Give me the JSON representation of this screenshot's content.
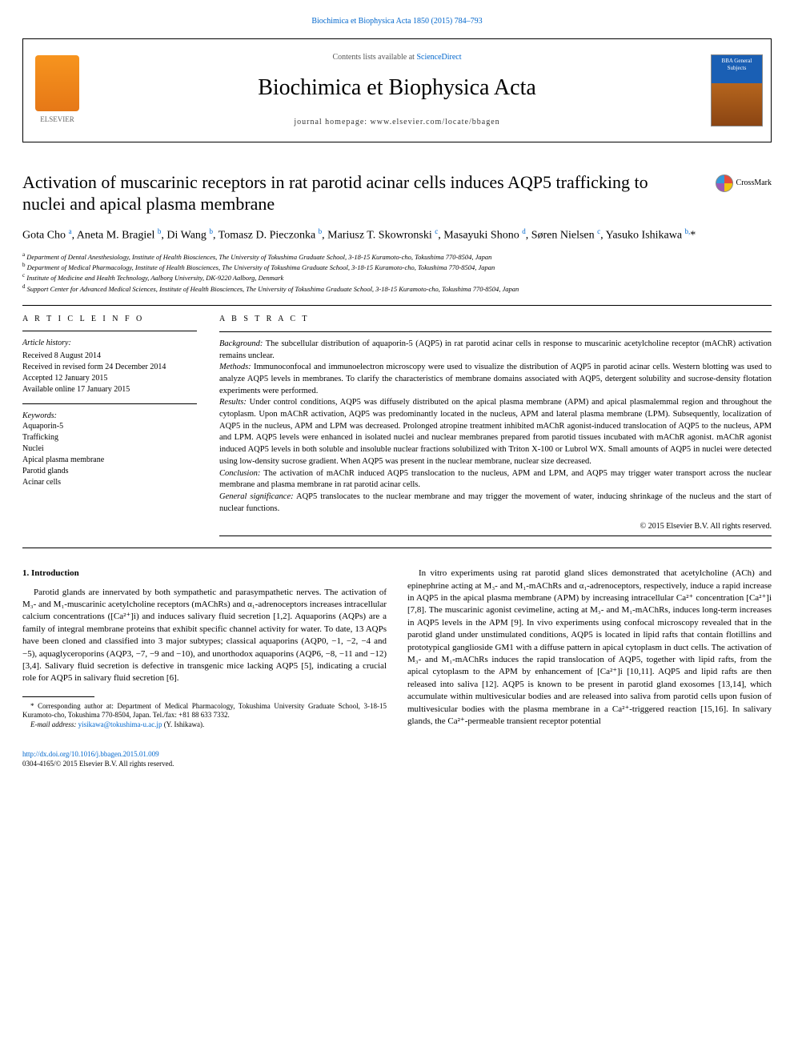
{
  "top_link": {
    "pre": "",
    "journal": "Biochimica et Biophysica Acta",
    "cite": " 1850 (2015) 784–793"
  },
  "header": {
    "contents_pre": "Contents lists available at ",
    "contents_link": "ScienceDirect",
    "journal": "Biochimica et Biophysica Acta",
    "homepage_label": "journal homepage: ",
    "homepage": "www.elsevier.com/locate/bbagen",
    "elsevier_label": "ELSEVIER",
    "cover_text": "BBA General Subjects"
  },
  "title": "Activation of muscarinic receptors in rat parotid acinar cells induces AQP5 trafficking to nuclei and apical plasma membrane",
  "crossmark": "CrossMark",
  "authors_html": "Gota Cho <sup>a</sup>, Aneta M. Bragiel <sup>b</sup>, Di Wang <sup>b</sup>, Tomasz D. Pieczonka <sup>b</sup>, Mariusz T. Skowronski <sup>c</sup>, Masayuki Shono <sup>d</sup>, Søren Nielsen <sup>c</sup>, Yasuko Ishikawa <sup>b,</sup><span class='star'>*</span>",
  "affiliations": [
    {
      "sup": "a",
      "text": " Department of Dental Anesthesiology, Institute of Health Biosciences, The University of Tokushima Graduate School, 3-18-15 Kuramoto-cho, Tokushima 770-8504, Japan"
    },
    {
      "sup": "b",
      "text": " Department of Medical Pharmacology, Institute of Health Biosciences, The University of Tokushima Graduate School, 3-18-15 Kuramoto-cho, Tokushima 770-8504, Japan"
    },
    {
      "sup": "c",
      "text": " Institute of Medicine and Health Technology, Aalborg University, DK-9220 Aalborg, Denmark"
    },
    {
      "sup": "d",
      "text": " Support Center for Advanced Medical Sciences, Institute of Health Biosciences, The University of Tokushima Graduate School, 3-18-15 Kuramoto-cho, Tokushima 770-8504, Japan"
    }
  ],
  "article_info": {
    "head": "A R T I C L E   I N F O",
    "history_label": "Article history:",
    "history": [
      "Received 8 August 2014",
      "Received in revised form 24 December 2014",
      "Accepted 12 January 2015",
      "Available online 17 January 2015"
    ],
    "kw_label": "Keywords:",
    "keywords": [
      "Aquaporin-5",
      "Trafficking",
      "Nuclei",
      "Apical plasma membrane",
      "Parotid glands",
      "Acinar cells"
    ]
  },
  "abstract": {
    "head": "A B S T R A C T",
    "segments": [
      {
        "label": "Background:",
        "text": " The subcellular distribution of aquaporin-5 (AQP5) in rat parotid acinar cells in response to muscarinic acetylcholine receptor (mAChR) activation remains unclear."
      },
      {
        "label": "Methods:",
        "text": " Immunoconfocal and immunoelectron microscopy were used to visualize the distribution of AQP5 in parotid acinar cells. Western blotting was used to analyze AQP5 levels in membranes. To clarify the characteristics of membrane domains associated with AQP5, detergent solubility and sucrose-density flotation experiments were performed."
      },
      {
        "label": "Results:",
        "text": " Under control conditions, AQP5 was diffusely distributed on the apical plasma membrane (APM) and apical plasmalemmal region and throughout the cytoplasm. Upon mAChR activation, AQP5 was predominantly located in the nucleus, APM and lateral plasma membrane (LPM). Subsequently, localization of AQP5 in the nucleus, APM and LPM was decreased. Prolonged atropine treatment inhibited mAChR agonist-induced translocation of AQP5 to the nucleus, APM and LPM. AQP5 levels were enhanced in isolated nuclei and nuclear membranes prepared from parotid tissues incubated with mAChR agonist. mAChR agonist induced AQP5 levels in both soluble and insoluble nuclear fractions solubilized with Triton X-100 or Lubrol WX. Small amounts of AQP5 in nuclei were detected using low-density sucrose gradient. When AQP5 was present in the nuclear membrane, nuclear size decreased."
      },
      {
        "label": "Conclusion:",
        "text": " The activation of mAChR induced AQP5 translocation to the nucleus, APM and LPM, and AQP5 may trigger water transport across the nuclear membrane and plasma membrane in rat parotid acinar cells."
      },
      {
        "label": "General significance:",
        "text": " AQP5 translocates to the nuclear membrane and may trigger the movement of water, inducing shrinkage of the nucleus and the start of nuclear functions."
      }
    ],
    "copyright": "© 2015 Elsevier B.V. All rights reserved."
  },
  "intro": {
    "head": "1. Introduction",
    "col1_p1": "Parotid glands are innervated by both sympathetic and parasympathetic nerves. The activation of M₃- and M₁-muscarinic acetylcholine receptors (mAChRs) and α₁-adrenoceptors increases intracellular calcium concentrations ([Ca²⁺]i) and induces salivary fluid secretion [1,2]. Aquaporins (AQPs) are a family of integral membrane proteins that exhibit specific channel activity for water. To date, 13 AQPs have been cloned and classified into 3 major subtypes; classical aquaporins (AQP0, −1, −2, −4 and −5), aquaglyceroporins (AQP3, −7, −9 and −10), and unorthodox aquaporins (AQP6, −8, −11 and −12) [3,4]. Salivary fluid secretion is defective in transgenic mice lacking AQP5 [5], indicating a crucial role for AQP5 in salivary fluid secretion [6].",
    "col2_p1": "In vitro experiments using rat parotid gland slices demonstrated that acetylcholine (ACh) and epinephrine acting at M₃- and M₁-mAChRs and α₁-adrenoceptors, respectively, induce a rapid increase in AQP5 in the apical plasma membrane (APM) by increasing intracellular Ca²⁺ concentration [Ca²⁺]i [7,8]. The muscarinic agonist cevimeline, acting at M₃- and M₁-mAChRs, induces long-term increases in AQP5 levels in the APM [9]. In vivo experiments using confocal microscopy revealed that in the parotid gland under unstimulated conditions, AQP5 is located in lipid rafts that contain flotillins and prototypical ganglioside GM1 with a diffuse pattern in apical cytoplasm in duct cells. The activation of M₃- and M₁-mAChRs induces the rapid translocation of AQP5, together with lipid rafts, from the apical cytoplasm to the APM by enhancement of [Ca²⁺]i [10,11]. AQP5 and lipid rafts are then released into saliva [12]. AQP5 is known to be present in parotid gland exosomes [13,14], which accumulate within multivesicular bodies and are released into saliva from parotid cells upon fusion of multivesicular bodies with the plasma membrane in a Ca²⁺-triggered reaction [15,16]. In salivary glands, the Ca²⁺-permeable transient receptor potential"
  },
  "footnotes": {
    "corr": "* Corresponding author at: Department of Medical Pharmacology, Tokushima University Graduate School, 3-18-15 Kuramoto-cho, Tokushima 770-8504, Japan. Tel./fax: +81 88 633 7332.",
    "email_label": "E-mail address: ",
    "email": "yisikawa@tokushima-u.ac.jp",
    "email_who": " (Y. Ishikawa)."
  },
  "footer": {
    "doi": "http://dx.doi.org/10.1016/j.bbagen.2015.01.009",
    "issn": "0304-4165/© 2015 Elsevier B.V. All rights reserved."
  },
  "colors": {
    "link": "#0066cc",
    "text": "#000000",
    "rule": "#000000",
    "elsevier_orange": "#f7941e"
  }
}
